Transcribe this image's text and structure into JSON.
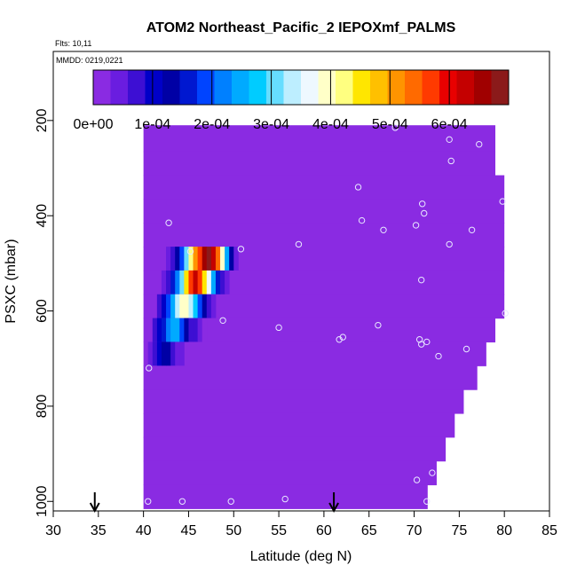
{
  "chart_data": {
    "type": "heatmap",
    "title": "ATOM2 Northeast_Pacific_2 IEPOXmf_PALMS",
    "flights_label": "Flts: 10,11",
    "dates_label": "MMDD: 0219,0221",
    "xlabel": "Latitude (deg N)",
    "ylabel": "PSXC (mbar)",
    "xlim": [
      30,
      85
    ],
    "ylim": [
      1020,
      55
    ],
    "x_ticks": [
      "30",
      "35",
      "40",
      "45",
      "50",
      "55",
      "60",
      "65",
      "70",
      "75",
      "80",
      "85"
    ],
    "y_ticks": [
      "200",
      "400",
      "600",
      "800",
      "1000"
    ],
    "colorbar": {
      "min": 0,
      "max": 0.0007,
      "tick_labels": [
        "0e+00",
        "1e-04",
        "2e-04",
        "3e-04",
        "4e-04",
        "5e-04",
        "6e-04"
      ],
      "colors": [
        "#8a2be2",
        "#6a1de0",
        "#3d0fd3",
        "#0000c8",
        "#0000a5",
        "#0018d0",
        "#0044ff",
        "#0080ff",
        "#00aaff",
        "#00ccff",
        "#66ddff",
        "#bdeeff",
        "#eef8ff",
        "#ffffc8",
        "#ffff80",
        "#ffe600",
        "#ffc000",
        "#ff9400",
        "#ff6a00",
        "#ff3a00",
        "#e80000",
        "#c40000",
        "#a00000",
        "#8b1a1a"
      ]
    },
    "background_value": 0,
    "envelope": [
      {
        "lat_from": 40.0,
        "lat_to": 79.0,
        "p_from": 210,
        "p_to": 265
      },
      {
        "lat_from": 40.0,
        "lat_to": 79.0,
        "p_from": 265,
        "p_to": 315
      },
      {
        "lat_from": 40.0,
        "lat_to": 80.0,
        "p_from": 315,
        "p_to": 365
      },
      {
        "lat_from": 40.0,
        "lat_to": 80.0,
        "p_from": 365,
        "p_to": 415
      },
      {
        "lat_from": 40.0,
        "lat_to": 80.0,
        "p_from": 415,
        "p_to": 465
      },
      {
        "lat_from": 40.0,
        "lat_to": 80.0,
        "p_from": 465,
        "p_to": 515
      },
      {
        "lat_from": 40.0,
        "lat_to": 80.0,
        "p_from": 515,
        "p_to": 565
      },
      {
        "lat_from": 40.0,
        "lat_to": 80.0,
        "p_from": 565,
        "p_to": 615
      },
      {
        "lat_from": 40.0,
        "lat_to": 79.0,
        "p_from": 615,
        "p_to": 665
      },
      {
        "lat_from": 40.0,
        "lat_to": 78.0,
        "p_from": 665,
        "p_to": 715
      },
      {
        "lat_from": 40.0,
        "lat_to": 77.0,
        "p_from": 715,
        "p_to": 765
      },
      {
        "lat_from": 40.0,
        "lat_to": 75.5,
        "p_from": 765,
        "p_to": 815
      },
      {
        "lat_from": 40.0,
        "lat_to": 74.5,
        "p_from": 815,
        "p_to": 865
      },
      {
        "lat_from": 40.0,
        "lat_to": 73.5,
        "p_from": 865,
        "p_to": 915
      },
      {
        "lat_from": 40.0,
        "lat_to": 72.5,
        "p_from": 915,
        "p_to": 965
      },
      {
        "lat_from": 40.0,
        "lat_to": 71.5,
        "p_from": 965,
        "p_to": 1015
      }
    ],
    "value_rows": [
      {
        "p_from": 465,
        "p_to": 515,
        "lat_from": 42.5,
        "values": [
          5e-05,
          6e-05,
          0.00012,
          0.0002,
          0.0003,
          0.00042,
          0.0005,
          0.00058,
          0.00065,
          0.00068,
          0.00062,
          0.00055,
          0.0004,
          0.00025,
          0.00012,
          5e-05
        ]
      },
      {
        "p_from": 515,
        "p_to": 565,
        "lat_from": 42.0,
        "values": [
          5e-05,
          8e-05,
          0.00015,
          0.00022,
          0.00032,
          0.00045,
          0.00056,
          0.00063,
          0.00058,
          0.00045,
          0.00035,
          0.00025,
          0.00015,
          8e-05,
          5e-05
        ]
      },
      {
        "p_from": 565,
        "p_to": 615,
        "lat_from": 41.5,
        "values": [
          6e-05,
          0.0001,
          0.00018,
          0.00025,
          0.00033,
          0.0004,
          0.00038,
          0.00033,
          0.00028,
          0.0002,
          0.00012,
          6e-05,
          3e-05
        ]
      },
      {
        "p_from": 615,
        "p_to": 665,
        "lat_from": 41.0,
        "values": [
          6e-05,
          0.0001,
          0.00016,
          0.00022,
          0.00026,
          0.00024,
          0.00018,
          0.00012,
          8e-05,
          6e-05,
          4e-05,
          2e-05
        ]
      },
      {
        "p_from": 665,
        "p_to": 715,
        "lat_from": 40.5,
        "values": [
          3e-05,
          6e-05,
          0.0001,
          0.00014,
          0.00012,
          8e-05,
          5e-05,
          3e-05
        ]
      }
    ],
    "cell_width_deg": 0.5,
    "sample_points": [
      {
        "lat": 42.8,
        "p": 415
      },
      {
        "lat": 45.2,
        "p": 475
      },
      {
        "lat": 50.8,
        "p": 470
      },
      {
        "lat": 57.2,
        "p": 460
      },
      {
        "lat": 63.8,
        "p": 340
      },
      {
        "lat": 64.2,
        "p": 410
      },
      {
        "lat": 66.6,
        "p": 430
      },
      {
        "lat": 67.9,
        "p": 215
      },
      {
        "lat": 70.2,
        "p": 420
      },
      {
        "lat": 70.9,
        "p": 375
      },
      {
        "lat": 71.1,
        "p": 395
      },
      {
        "lat": 73.9,
        "p": 240
      },
      {
        "lat": 74.1,
        "p": 285
      },
      {
        "lat": 77.2,
        "p": 250
      },
      {
        "lat": 79.8,
        "p": 370
      },
      {
        "lat": 76.4,
        "p": 430
      },
      {
        "lat": 73.9,
        "p": 460
      },
      {
        "lat": 70.8,
        "p": 535
      },
      {
        "lat": 80.1,
        "p": 605
      },
      {
        "lat": 75.8,
        "p": 680
      },
      {
        "lat": 72.7,
        "p": 695
      },
      {
        "lat": 71.4,
        "p": 665
      },
      {
        "lat": 70.8,
        "p": 670
      },
      {
        "lat": 70.6,
        "p": 660
      },
      {
        "lat": 66.0,
        "p": 630
      },
      {
        "lat": 62.1,
        "p": 655
      },
      {
        "lat": 61.7,
        "p": 660
      },
      {
        "lat": 55.0,
        "p": 635
      },
      {
        "lat": 48.8,
        "p": 620
      },
      {
        "lat": 40.6,
        "p": 720
      },
      {
        "lat": 70.3,
        "p": 955
      },
      {
        "lat": 72.0,
        "p": 940
      },
      {
        "lat": 71.4,
        "p": 1000
      },
      {
        "lat": 55.7,
        "p": 995
      },
      {
        "lat": 49.7,
        "p": 1000
      },
      {
        "lat": 44.3,
        "p": 1000
      },
      {
        "lat": 40.5,
        "p": 1000
      }
    ],
    "arrows_lat": [
      34.6,
      61.1
    ]
  }
}
